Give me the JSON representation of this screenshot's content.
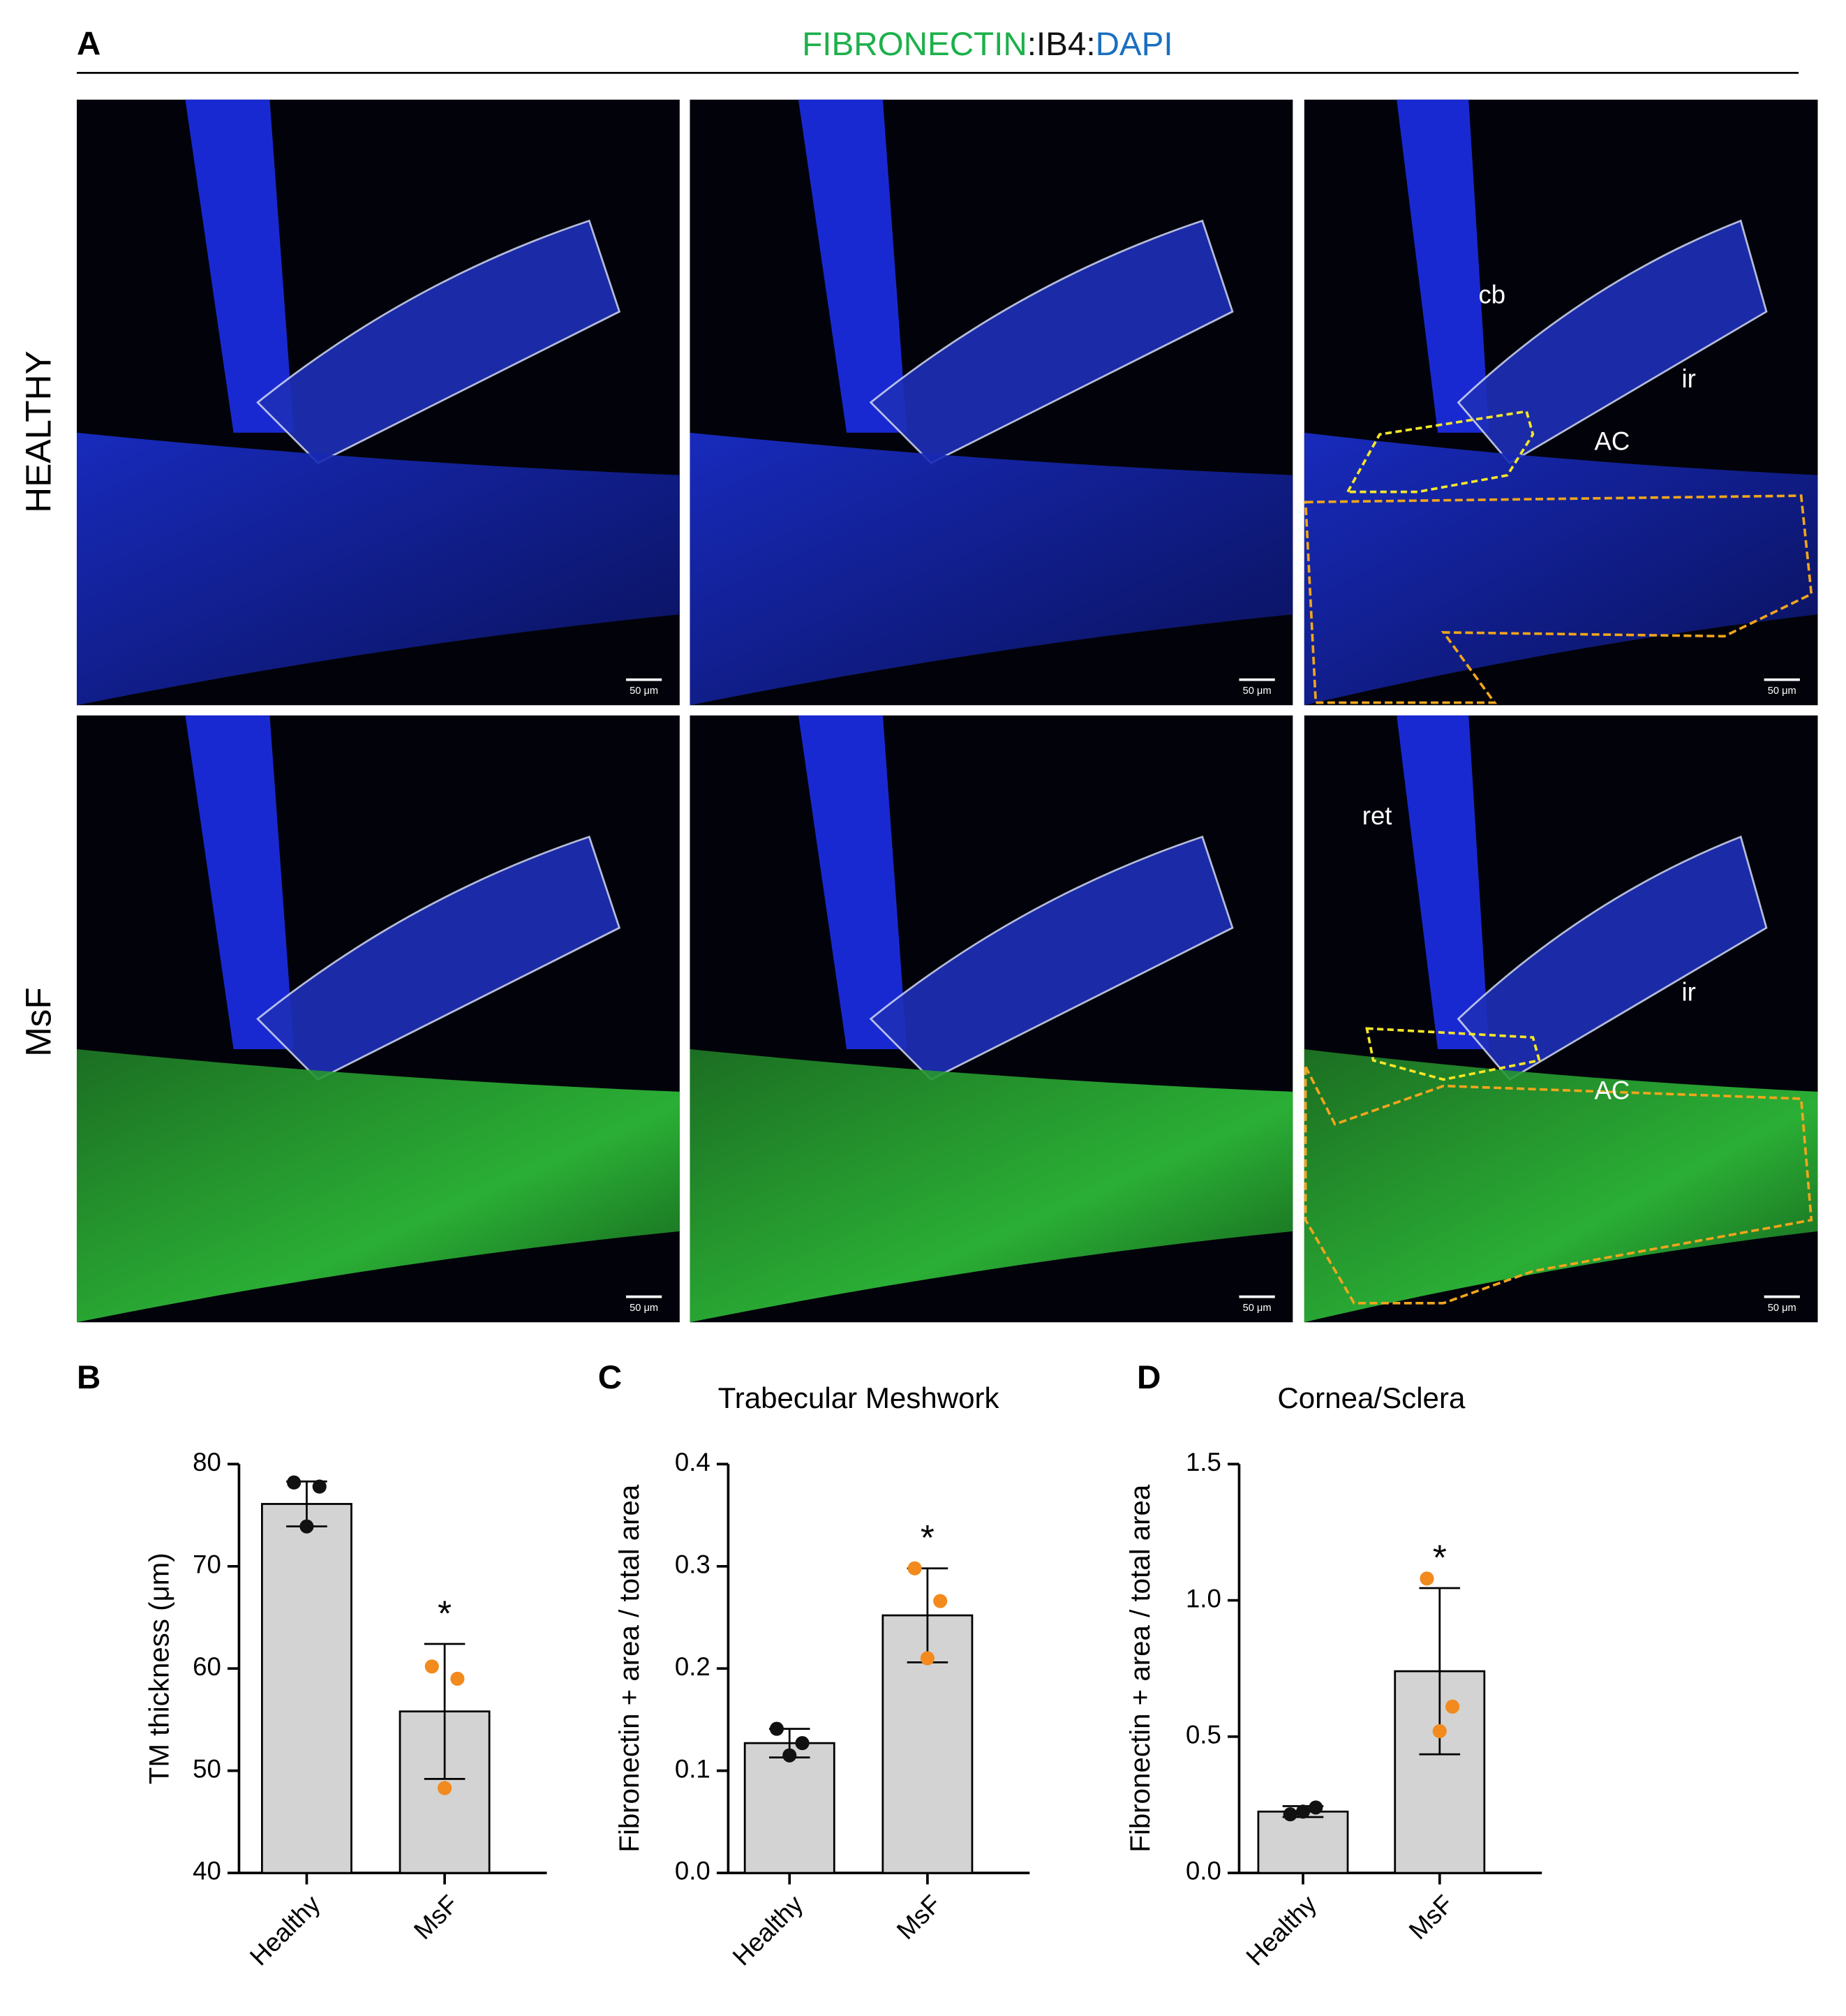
{
  "panel_a": {
    "label": "A",
    "title": [
      "FIBRONECTIN",
      ":",
      "IB4",
      ":",
      "DAPI"
    ],
    "title_colors": [
      "#1db04b",
      "#111111",
      "#111111",
      "#111111",
      "#1a6fc0"
    ],
    "rows": [
      "HEALTHY",
      "MsF"
    ],
    "scale_bar": "50 μm",
    "labels": [
      [
        "cb",
        "ir",
        "AC"
      ],
      [
        "ret",
        "ir",
        "AC"
      ]
    ]
  },
  "chart_data": [
    {
      "type": "bar",
      "panel": "B",
      "y_label": "TM thickness (μm)",
      "categories": [
        "Healthy",
        "MsF"
      ],
      "values": [
        76.1,
        55.8
      ],
      "errors": [
        2.2,
        6.6
      ],
      "points": [
        [
          78.2,
          77.8,
          73.9
        ],
        [
          60.2,
          59.0,
          48.3
        ]
      ],
      "point_colors": [
        "#111111",
        "#f28a1e"
      ],
      "bar_color": "#d3d3d3",
      "significance": [
        null,
        "*"
      ],
      "ylim": [
        40,
        80
      ],
      "yticks": [
        40,
        50,
        60,
        70,
        80
      ]
    },
    {
      "type": "bar",
      "panel": "C",
      "title": "Trabecular Meshwork",
      "y_label": "Fibronectin + area / total area",
      "categories": [
        "Healthy",
        "MsF"
      ],
      "values": [
        0.127,
        0.252
      ],
      "errors": [
        0.014,
        0.046
      ],
      "points": [
        [
          0.141,
          0.127,
          0.115
        ],
        [
          0.298,
          0.266,
          0.21
        ]
      ],
      "point_colors": [
        "#111111",
        "#f28a1e"
      ],
      "bar_color": "#d3d3d3",
      "significance": [
        null,
        "*"
      ],
      "ylim": [
        0,
        0.4
      ],
      "yticks": [
        {
          "value": 0,
          "label": "0.0"
        },
        0.1,
        0.2,
        0.3,
        0.4
      ]
    },
    {
      "type": "bar",
      "panel": "D",
      "title": "Cornea/Sclera",
      "y_label": "Fibronectin + area / total area",
      "categories": [
        "Healthy",
        "MsF"
      ],
      "values": [
        0.225,
        0.74
      ],
      "errors": [
        0.02,
        0.305
      ],
      "points": [
        [
          0.215,
          0.24,
          0.225
        ],
        [
          1.08,
          0.61,
          0.52
        ]
      ],
      "point_colors": [
        "#111111",
        "#f28a1e"
      ],
      "bar_color": "#d3d3d3",
      "significance": [
        null,
        "*"
      ],
      "ylim": [
        0,
        1.5
      ],
      "yticks": [
        {
          "value": 0,
          "label": "0.0"
        },
        0.5,
        {
          "value": 1,
          "label": "1.0"
        },
        1.5
      ]
    }
  ]
}
